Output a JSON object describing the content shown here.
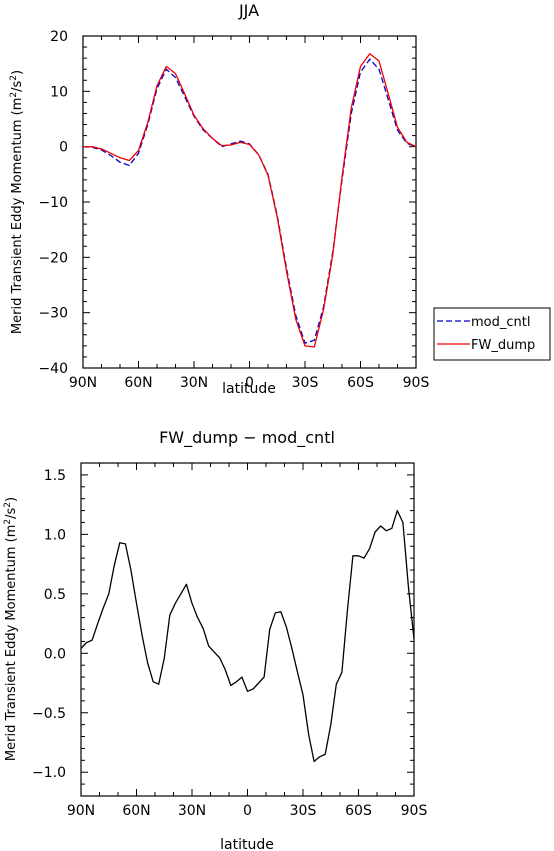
{
  "chart_data": [
    {
      "type": "line",
      "title": "JJA",
      "xlabel": "latitude",
      "ylabel": "Merid Transient Eddy Momentum (m²/s²)",
      "ylabel_prefix": "Merid Transient Eddy Momentum (m",
      "ylabel_sup": "2",
      "ylabel_mid": "/s",
      "ylabel_sup2": "2",
      "ylabel_suffix": ")",
      "xlim": [
        90,
        -90
      ],
      "ylim": [
        -40,
        20
      ],
      "xticks": [
        90,
        60,
        30,
        0,
        -30,
        -60,
        -90
      ],
      "xtick_labels": [
        "90N",
        "60N",
        "30N",
        "0",
        "30S",
        "60S",
        "90S"
      ],
      "yticks": [
        20,
        10,
        0,
        -10,
        -20,
        -30,
        -40
      ],
      "ytick_labels": [
        "20",
        "10",
        "0",
        "−10",
        "−20",
        "−30",
        "−40"
      ],
      "grid": false,
      "legend_position": "right",
      "series": [
        {
          "name": "mod_cntl",
          "color": "#0000cc",
          "dash": "dashed",
          "x": [
            90,
            85,
            80,
            75,
            70,
            65,
            60,
            55,
            50,
            45,
            40,
            35,
            30,
            25,
            20,
            15,
            10,
            5,
            0,
            -5,
            -10,
            -15,
            -20,
            -25,
            -30,
            -35,
            -40,
            -45,
            -50,
            -55,
            -60,
            -65,
            -70,
            -75,
            -80,
            -85,
            -90
          ],
          "y": [
            0,
            -0.1,
            -0.6,
            -1.6,
            -2.8,
            -3.4,
            -1.2,
            4.0,
            10.5,
            14.0,
            12.5,
            9.0,
            5.5,
            3.0,
            1.5,
            0.0,
            0.5,
            1.0,
            0.5,
            -1.5,
            -5.0,
            -12.5,
            -22.0,
            -30.5,
            -35.5,
            -35.0,
            -29.0,
            -19.0,
            -6.0,
            6.0,
            13.5,
            15.8,
            14.0,
            8.5,
            3.0,
            0.6,
            0
          ]
        },
        {
          "name": "FW_dump",
          "color": "#ee0000",
          "dash": "solid",
          "x": [
            90,
            85,
            80,
            75,
            70,
            65,
            60,
            55,
            50,
            45,
            40,
            35,
            30,
            25,
            20,
            15,
            10,
            5,
            0,
            -5,
            -10,
            -15,
            -20,
            -25,
            -30,
            -35,
            -40,
            -45,
            -50,
            -55,
            -60,
            -65,
            -70,
            -75,
            -80,
            -85,
            -90
          ],
          "y": [
            0,
            0.0,
            -0.4,
            -1.2,
            -2.0,
            -2.5,
            -0.7,
            4.4,
            11.0,
            14.5,
            13.2,
            9.5,
            5.7,
            3.2,
            1.5,
            0.2,
            0.3,
            0.8,
            0.4,
            -1.5,
            -5.2,
            -12.8,
            -22.5,
            -31.2,
            -36.0,
            -36.2,
            -29.5,
            -19.5,
            -5.5,
            7.0,
            14.5,
            16.8,
            15.5,
            9.5,
            3.5,
            0.8,
            0
          ]
        }
      ]
    },
    {
      "type": "line",
      "title": "FW_dump − mod_cntl",
      "xlabel": "latitude",
      "ylabel": "Merid Transient Eddy Momentum (m²/s²)",
      "ylabel_prefix": "Merid Transient Eddy Momentum (m",
      "ylabel_sup": "2",
      "ylabel_mid": "/s",
      "ylabel_sup2": "2",
      "ylabel_suffix": ")",
      "xlim": [
        90,
        -90
      ],
      "ylim": [
        -1.2,
        1.6
      ],
      "xticks": [
        90,
        60,
        30,
        0,
        -30,
        -60,
        -90
      ],
      "xtick_labels": [
        "90N",
        "60N",
        "30N",
        "0",
        "30S",
        "60S",
        "90S"
      ],
      "yticks": [
        1.5,
        1.0,
        0.5,
        0.0,
        -0.5,
        -1.0
      ],
      "ytick_labels": [
        "1.5",
        "1.0",
        "0.5",
        "0.0",
        "−0.5",
        "−1.0"
      ],
      "grid": false,
      "series": [
        {
          "color": "#000000",
          "dash": "solid",
          "x": [
            90,
            87,
            84,
            81,
            78,
            75,
            72,
            69,
            66,
            63,
            60,
            57,
            54,
            51,
            48,
            45,
            42,
            39,
            36,
            33,
            30,
            27,
            24,
            21,
            18,
            15,
            12,
            9,
            6,
            3,
            0,
            -3,
            -6,
            -9,
            -12,
            -15,
            -18,
            -21,
            -24,
            -27,
            -30,
            -33,
            -36,
            -39,
            -42,
            -45,
            -48,
            -51,
            -54,
            -57,
            -60,
            -63,
            -66,
            -69,
            -72,
            -75,
            -78,
            -81,
            -84,
            -87,
            -90
          ],
          "y": [
            0.04,
            0.09,
            0.11,
            0.25,
            0.38,
            0.5,
            0.74,
            0.93,
            0.92,
            0.7,
            0.42,
            0.15,
            -0.08,
            -0.24,
            -0.26,
            -0.04,
            0.32,
            0.42,
            0.5,
            0.58,
            0.42,
            0.3,
            0.21,
            0.06,
            0.01,
            -0.04,
            -0.14,
            -0.27,
            -0.24,
            -0.2,
            -0.32,
            -0.3,
            -0.25,
            -0.2,
            0.2,
            0.34,
            0.35,
            0.22,
            0.04,
            -0.16,
            -0.35,
            -0.68,
            -0.91,
            -0.87,
            -0.85,
            -0.6,
            -0.26,
            -0.16,
            0.36,
            0.82,
            0.82,
            0.8,
            0.88,
            1.02,
            1.07,
            1.03,
            1.05,
            1.2,
            1.1,
            0.56,
            0.12
          ]
        }
      ]
    }
  ],
  "legend": {
    "mod_cntl_label": "mod_cntl",
    "fw_dump_label": "FW_dump"
  }
}
